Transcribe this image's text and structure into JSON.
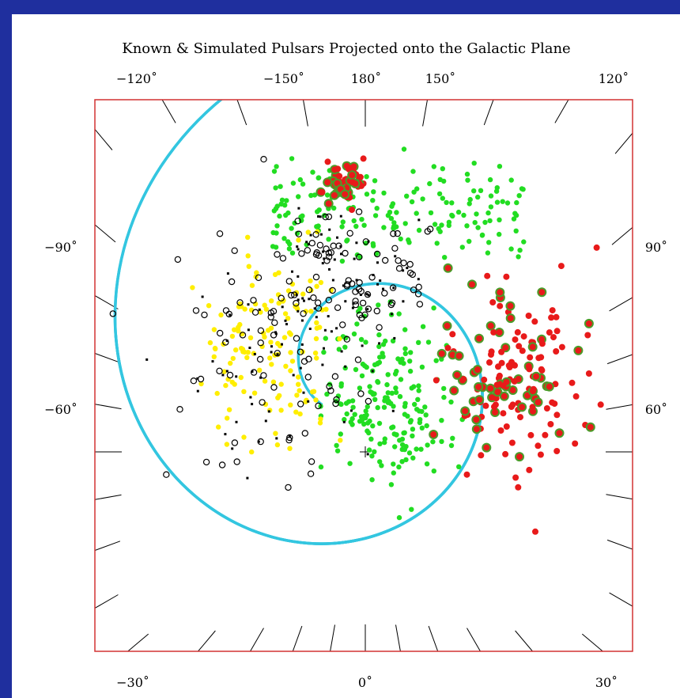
{
  "chart_data": {
    "type": "scatter",
    "title": "Known & Simulated Pulsars Projected onto the Galactic Plane",
    "top_tick_labels": [
      "−120˚",
      "−150˚",
      "180˚",
      "150˚",
      "120˚"
    ],
    "left_tick_labels": [
      "−90˚",
      "−60˚"
    ],
    "right_tick_labels": [
      "90˚",
      "60˚"
    ],
    "bottom_tick_labels": [
      "−30˚",
      "0˚",
      "30˚"
    ],
    "grid": false,
    "legend": "none",
    "colors": {
      "frame": "#d23232",
      "spiral_arms": "#33c6e0",
      "green_points": "#22dd22",
      "yellow_points": "#ffee00",
      "red_points": "#e81a1a",
      "known_points": "#000000"
    },
    "groups": [
      {
        "color": "green",
        "count": 380,
        "region": "center and upper band"
      },
      {
        "color": "yellow",
        "count": 140,
        "region": "left of center"
      },
      {
        "color": "red",
        "count": 220,
        "region": "right side"
      },
      {
        "color": "black",
        "count": 260,
        "region": "center and upper-left"
      }
    ]
  }
}
